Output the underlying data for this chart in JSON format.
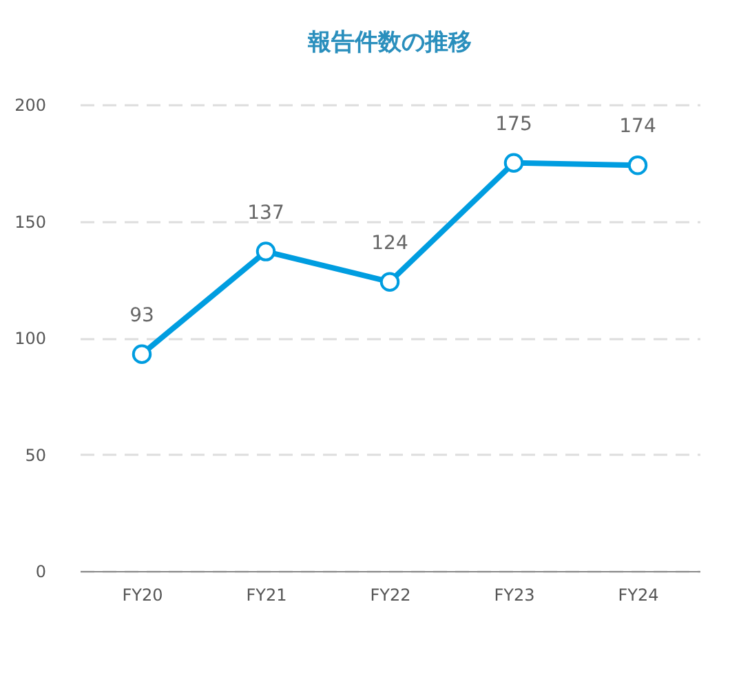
{
  "chart_data": {
    "type": "line",
    "title": "報告件数の推移",
    "categories": [
      "FY20",
      "FY21",
      "FY22",
      "FY23",
      "FY24"
    ],
    "series": [
      {
        "color": "#009de0",
        "values": [
          93,
          137,
          124,
          175,
          174
        ]
      }
    ],
    "ylim": [
      0,
      200
    ],
    "yticks": [
      0,
      50,
      100,
      150,
      200
    ],
    "grid": "y",
    "marker": "circle",
    "line_style": "solid",
    "data_labels": true,
    "legend": false
  }
}
